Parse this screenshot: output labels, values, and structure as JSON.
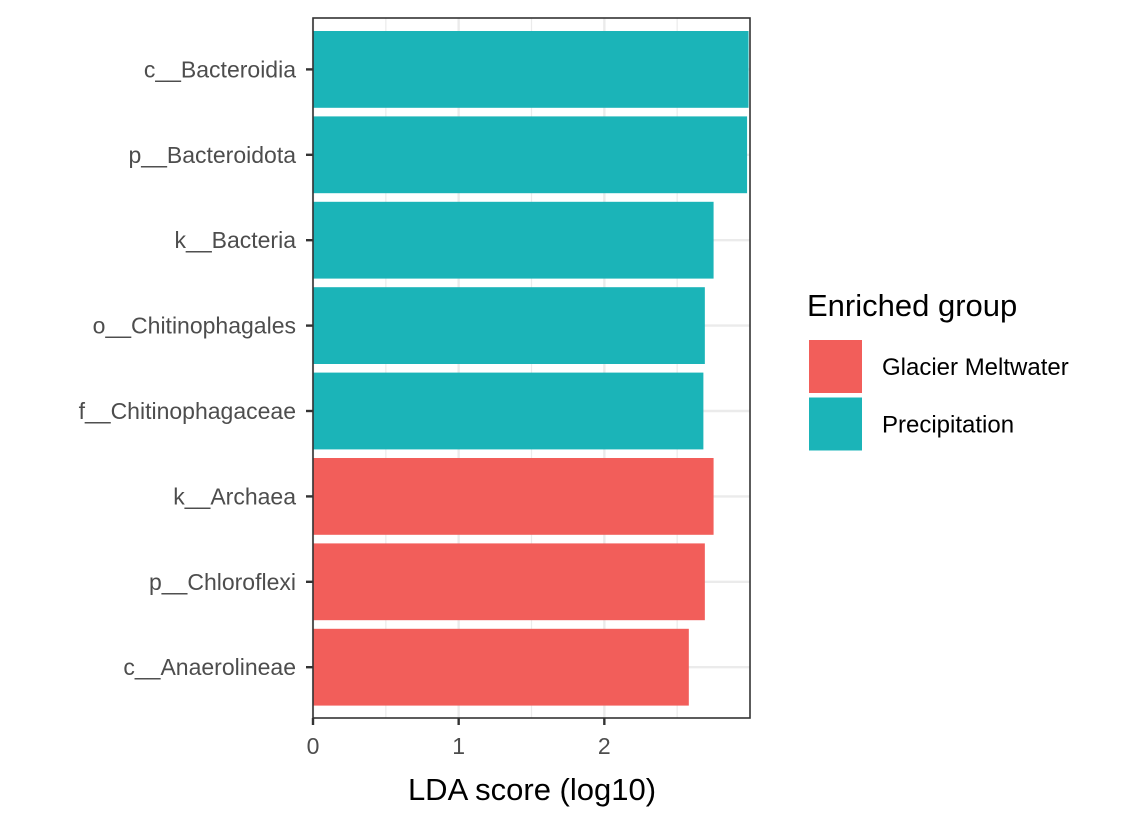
{
  "chart_data": {
    "type": "bar",
    "orientation": "horizontal",
    "categories": [
      "c__Bacteroidia",
      "p__Bacteroidota",
      "k__Bacteria",
      "o__Chitinophagales",
      "f__Chitinophagaceae",
      "k__Archaea",
      "p__Chloroflexi",
      "c__Anaerolineae"
    ],
    "values": [
      2.99,
      2.98,
      2.75,
      2.69,
      2.68,
      2.75,
      2.69,
      2.58
    ],
    "groups": [
      "Precipitation",
      "Precipitation",
      "Precipitation",
      "Precipitation",
      "Precipitation",
      "Glacier Meltwater",
      "Glacier Meltwater",
      "Glacier Meltwater"
    ],
    "xlabel": "LDA score (log10)",
    "ylabel": "",
    "title": "",
    "xlim": [
      0,
      3.0
    ],
    "xticks": [
      0,
      1,
      2
    ],
    "xtick_labels": [
      "0",
      "1",
      "2"
    ],
    "grid": true,
    "legend": {
      "title": "Enriched group",
      "position": "right",
      "entries": [
        {
          "label": "Glacier Meltwater",
          "color": "#F25E5A"
        },
        {
          "label": "Precipitation",
          "color": "#1BB4B8"
        }
      ]
    },
    "colors": {
      "Glacier Meltwater": "#F25E5A",
      "Precipitation": "#1BB4B8",
      "panel_border": "#333333",
      "grid": "#ebebeb"
    }
  }
}
